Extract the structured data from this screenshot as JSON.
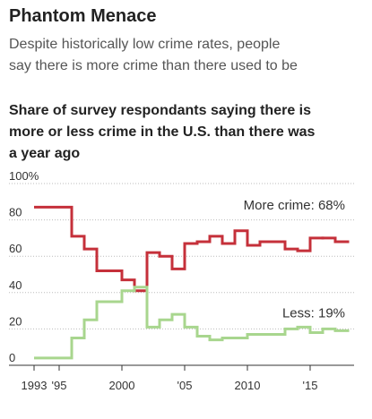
{
  "chart_data": {
    "type": "step",
    "title": "Phantom Menace",
    "subtitle": [
      "Despite historically low crime rates, people",
      "say there is more crime than there used to be"
    ],
    "chart_title": [
      "Share of survey respondants saying there is",
      "more or less crime in the U.S. than there was",
      "a year ago"
    ],
    "x": [
      1993,
      1996,
      1997,
      1998,
      2000,
      2001,
      2002,
      2003,
      2004,
      2005,
      2006,
      2007,
      2008,
      2009,
      2010,
      2011,
      2012,
      2013,
      2014,
      2015,
      2016,
      2017
    ],
    "xlim": [
      1993,
      2018
    ],
    "xticks": [
      {
        "value": 1993,
        "label": "1993"
      },
      {
        "value": 1995,
        "label": "'95"
      },
      2000,
      {
        "value": 2005,
        "label": "'05"
      },
      2010,
      {
        "value": 2015,
        "label": "'15"
      }
    ],
    "ylim": [
      0,
      100
    ],
    "yticks": [
      0,
      20,
      40,
      60,
      80,
      {
        "value": 100,
        "label": "100%"
      }
    ],
    "grid": true,
    "series": [
      {
        "name": "More crime: 68%",
        "color": "#c5303a",
        "values": [
          87,
          71,
          64,
          52,
          47,
          41,
          62,
          60,
          53,
          67,
          68,
          71,
          67,
          74,
          66,
          68,
          68,
          64,
          63,
          70,
          70,
          68
        ]
      },
      {
        "name": "Less: 19%",
        "color": "#a8d68e",
        "values": [
          4,
          15,
          25,
          35,
          41,
          43,
          21,
          25,
          28,
          21,
          16,
          14,
          15,
          15,
          17,
          17,
          17,
          20,
          21,
          18,
          20,
          19
        ]
      }
    ]
  }
}
